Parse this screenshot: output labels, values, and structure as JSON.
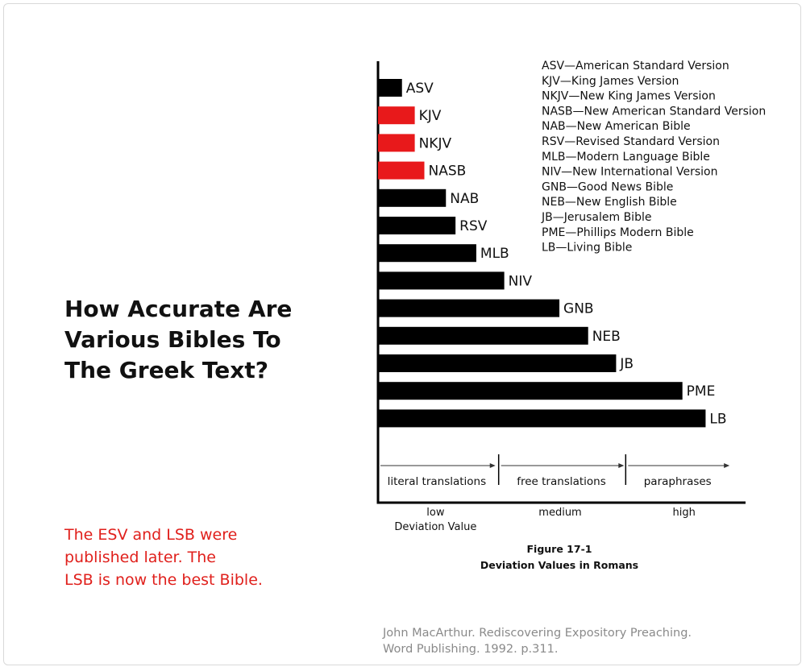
{
  "page": {
    "heading_lines": [
      "How Accurate Are",
      "Various Bibles To",
      "The Greek Text?"
    ],
    "note_lines": [
      "The ESV and LSB were",
      "published later. The",
      "LSB is now the best Bible."
    ],
    "source_lines": [
      "John MacArthur. Rediscovering Expository Preaching.",
      "Word Publishing. 1992. p.311."
    ]
  },
  "chart_data": {
    "type": "bar",
    "orientation": "horizontal",
    "categories": [
      "ASV",
      "KJV",
      "NKJV",
      "NASB",
      "NAB",
      "RSV",
      "MLB",
      "NIV",
      "GNB",
      "NEB",
      "JB",
      "PME",
      "LB"
    ],
    "values": [
      30,
      46,
      46,
      58,
      85,
      97,
      123,
      158,
      227,
      263,
      298,
      381,
      410
    ],
    "highlighted": [
      "KJV",
      "NKJV",
      "NASB"
    ],
    "colors": {
      "default": "#000000",
      "highlight": "#e8191b"
    },
    "legend": [
      "ASV—American Standard Version",
      "KJV—King James Version",
      "NKJV—New King James Version",
      "NASB—New American Standard Version",
      "NAB—New American Bible",
      "RSV—Revised Standard Version",
      "MLB—Modern Language Bible",
      "NIV—New International Version",
      "GNB—Good News Bible",
      "NEB—New English Bible",
      "JB—Jerusalem Bible",
      "PME—Phillips Modern Bible",
      "LB—Living Bible"
    ],
    "legend_placement": "top-right",
    "xlim": [
      0,
      460
    ],
    "regions": [
      {
        "label": "literal translations",
        "range": [
          0,
          147
        ]
      },
      {
        "label": "free translations",
        "range": [
          151,
          308
        ]
      },
      {
        "label": "paraphrases",
        "range": [
          310,
          440
        ]
      }
    ],
    "x_tick_labels": [
      {
        "label": "low",
        "at": 72
      },
      {
        "label": "medium",
        "at": 228
      },
      {
        "label": "high",
        "at": 383
      }
    ],
    "xlabel": "Deviation Value",
    "caption": [
      "Figure 17-1",
      "Deviation Values in Romans"
    ],
    "grid": false
  }
}
